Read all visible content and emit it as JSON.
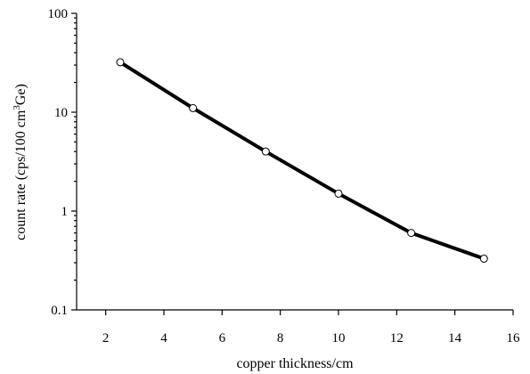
{
  "chart_data": {
    "type": "line",
    "title": "",
    "xlabel": "copper thickness/cm",
    "ylabel_prefix": "count rate (cps/100 cm",
    "ylabel_sup": "3",
    "ylabel_suffix": "Ge)",
    "xscale": "linear",
    "yscale": "log",
    "xlim": [
      1,
      16
    ],
    "ylim": [
      0.1,
      100
    ],
    "x_ticks": [
      2,
      4,
      6,
      8,
      10,
      12,
      14,
      16
    ],
    "x_tick_labels": [
      "2",
      "4",
      "6",
      "8",
      "10",
      "12",
      "14",
      "16"
    ],
    "y_ticks": [
      0.1,
      1,
      10,
      100
    ],
    "y_tick_labels": [
      "0.1",
      "1",
      "10",
      "100"
    ],
    "grid": false,
    "legend": "none",
    "series": [
      {
        "x": [
          2.5,
          5,
          7.5,
          10,
          12.5,
          15
        ],
        "y": [
          32,
          11,
          4,
          1.5,
          0.6,
          0.33
        ],
        "color": "#000000",
        "marker": "open-circle"
      }
    ]
  }
}
